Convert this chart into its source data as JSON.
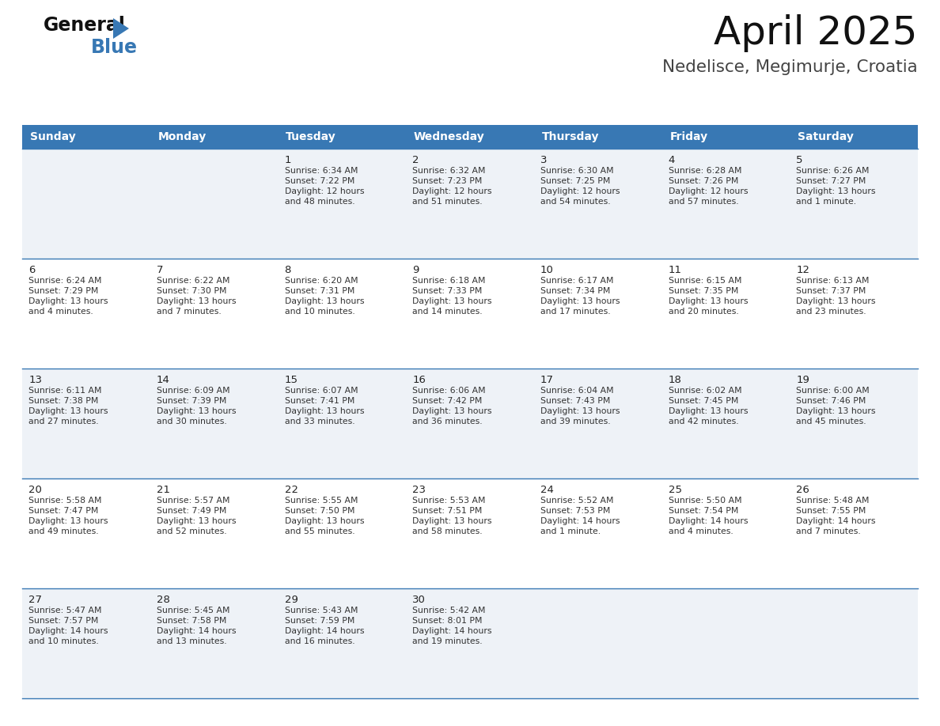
{
  "title": "April 2025",
  "subtitle": "Nedelisce, Megimurje, Croatia",
  "days_of_week": [
    "Sunday",
    "Monday",
    "Tuesday",
    "Wednesday",
    "Thursday",
    "Friday",
    "Saturday"
  ],
  "header_bg": "#3878b4",
  "header_text": "#ffffff",
  "row_bg_odd": "#eef2f7",
  "row_bg_even": "#ffffff",
  "cell_border": "#3878b4",
  "day_num_color": "#222222",
  "info_text_color": "#333333",
  "calendar_data": [
    [
      {
        "day": null,
        "sunrise": null,
        "sunset": null,
        "daylight": null
      },
      {
        "day": null,
        "sunrise": null,
        "sunset": null,
        "daylight": null
      },
      {
        "day": 1,
        "sunrise": "6:34 AM",
        "sunset": "7:22 PM",
        "daylight": "12 hours\nand 48 minutes."
      },
      {
        "day": 2,
        "sunrise": "6:32 AM",
        "sunset": "7:23 PM",
        "daylight": "12 hours\nand 51 minutes."
      },
      {
        "day": 3,
        "sunrise": "6:30 AM",
        "sunset": "7:25 PM",
        "daylight": "12 hours\nand 54 minutes."
      },
      {
        "day": 4,
        "sunrise": "6:28 AM",
        "sunset": "7:26 PM",
        "daylight": "12 hours\nand 57 minutes."
      },
      {
        "day": 5,
        "sunrise": "6:26 AM",
        "sunset": "7:27 PM",
        "daylight": "13 hours\nand 1 minute."
      }
    ],
    [
      {
        "day": 6,
        "sunrise": "6:24 AM",
        "sunset": "7:29 PM",
        "daylight": "13 hours\nand 4 minutes."
      },
      {
        "day": 7,
        "sunrise": "6:22 AM",
        "sunset": "7:30 PM",
        "daylight": "13 hours\nand 7 minutes."
      },
      {
        "day": 8,
        "sunrise": "6:20 AM",
        "sunset": "7:31 PM",
        "daylight": "13 hours\nand 10 minutes."
      },
      {
        "day": 9,
        "sunrise": "6:18 AM",
        "sunset": "7:33 PM",
        "daylight": "13 hours\nand 14 minutes."
      },
      {
        "day": 10,
        "sunrise": "6:17 AM",
        "sunset": "7:34 PM",
        "daylight": "13 hours\nand 17 minutes."
      },
      {
        "day": 11,
        "sunrise": "6:15 AM",
        "sunset": "7:35 PM",
        "daylight": "13 hours\nand 20 minutes."
      },
      {
        "day": 12,
        "sunrise": "6:13 AM",
        "sunset": "7:37 PM",
        "daylight": "13 hours\nand 23 minutes."
      }
    ],
    [
      {
        "day": 13,
        "sunrise": "6:11 AM",
        "sunset": "7:38 PM",
        "daylight": "13 hours\nand 27 minutes."
      },
      {
        "day": 14,
        "sunrise": "6:09 AM",
        "sunset": "7:39 PM",
        "daylight": "13 hours\nand 30 minutes."
      },
      {
        "day": 15,
        "sunrise": "6:07 AM",
        "sunset": "7:41 PM",
        "daylight": "13 hours\nand 33 minutes."
      },
      {
        "day": 16,
        "sunrise": "6:06 AM",
        "sunset": "7:42 PM",
        "daylight": "13 hours\nand 36 minutes."
      },
      {
        "day": 17,
        "sunrise": "6:04 AM",
        "sunset": "7:43 PM",
        "daylight": "13 hours\nand 39 minutes."
      },
      {
        "day": 18,
        "sunrise": "6:02 AM",
        "sunset": "7:45 PM",
        "daylight": "13 hours\nand 42 minutes."
      },
      {
        "day": 19,
        "sunrise": "6:00 AM",
        "sunset": "7:46 PM",
        "daylight": "13 hours\nand 45 minutes."
      }
    ],
    [
      {
        "day": 20,
        "sunrise": "5:58 AM",
        "sunset": "7:47 PM",
        "daylight": "13 hours\nand 49 minutes."
      },
      {
        "day": 21,
        "sunrise": "5:57 AM",
        "sunset": "7:49 PM",
        "daylight": "13 hours\nand 52 minutes."
      },
      {
        "day": 22,
        "sunrise": "5:55 AM",
        "sunset": "7:50 PM",
        "daylight": "13 hours\nand 55 minutes."
      },
      {
        "day": 23,
        "sunrise": "5:53 AM",
        "sunset": "7:51 PM",
        "daylight": "13 hours\nand 58 minutes."
      },
      {
        "day": 24,
        "sunrise": "5:52 AM",
        "sunset": "7:53 PM",
        "daylight": "14 hours\nand 1 minute."
      },
      {
        "day": 25,
        "sunrise": "5:50 AM",
        "sunset": "7:54 PM",
        "daylight": "14 hours\nand 4 minutes."
      },
      {
        "day": 26,
        "sunrise": "5:48 AM",
        "sunset": "7:55 PM",
        "daylight": "14 hours\nand 7 minutes."
      }
    ],
    [
      {
        "day": 27,
        "sunrise": "5:47 AM",
        "sunset": "7:57 PM",
        "daylight": "14 hours\nand 10 minutes."
      },
      {
        "day": 28,
        "sunrise": "5:45 AM",
        "sunset": "7:58 PM",
        "daylight": "14 hours\nand 13 minutes."
      },
      {
        "day": 29,
        "sunrise": "5:43 AM",
        "sunset": "7:59 PM",
        "daylight": "14 hours\nand 16 minutes."
      },
      {
        "day": 30,
        "sunrise": "5:42 AM",
        "sunset": "8:01 PM",
        "daylight": "14 hours\nand 19 minutes."
      },
      {
        "day": null,
        "sunrise": null,
        "sunset": null,
        "daylight": null
      },
      {
        "day": null,
        "sunrise": null,
        "sunset": null,
        "daylight": null
      },
      {
        "day": null,
        "sunrise": null,
        "sunset": null,
        "daylight": null
      }
    ]
  ],
  "logo_general_color": "#111111",
  "logo_blue_color": "#3878b4",
  "logo_triangle_color": "#3878b4",
  "fig_width": 11.88,
  "fig_height": 9.18,
  "dpi": 100
}
